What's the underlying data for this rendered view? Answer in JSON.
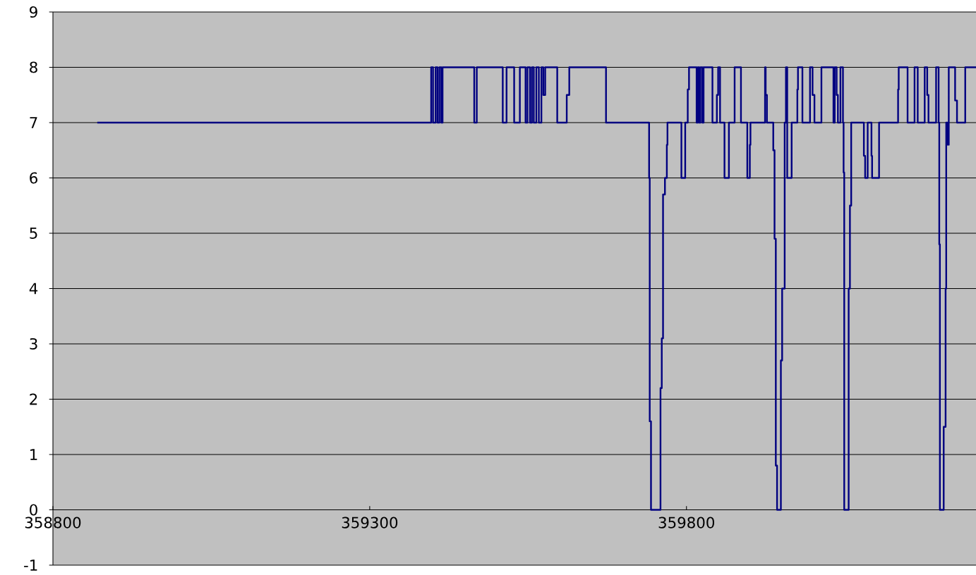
{
  "chart_data": {
    "type": "step",
    "x": [
      358870,
      359397,
      359400,
      359404,
      359407,
      359410,
      359413,
      359415,
      359465,
      359469,
      359510,
      359516,
      359528,
      359537,
      359546,
      359549,
      359553,
      359556,
      359559,
      359563,
      359567,
      359571,
      359574,
      359577,
      359596,
      359611,
      359615,
      359673,
      359741,
      359742,
      359744,
      359759,
      359761,
      359763,
      359766,
      359769,
      359770,
      359792,
      359798,
      359802,
      359804,
      359816,
      359818,
      359820,
      359822,
      359825,
      359827,
      359841,
      359848,
      359850,
      359853,
      359860,
      359867,
      359876,
      359886,
      359896,
      359900,
      359901,
      359924,
      359925,
      359927,
      359937,
      359939,
      359941,
      359943,
      359949,
      359951,
      359955,
      359957,
      359959,
      359966,
      359975,
      359976,
      359983,
      359995,
      359999,
      360002,
      360013,
      360032,
      360034,
      360037,
      360039,
      360043,
      360047,
      360048,
      360049,
      360056,
      360058,
      360060,
      360080,
      360082,
      360086,
      360092,
      360093,
      360104,
      360134,
      360135,
      360149,
      360160,
      360165,
      360176,
      360180,
      360182,
      360194,
      360198,
      360199,
      360200,
      360206,
      360209,
      360210,
      360212,
      360214,
      360224,
      360227,
      360240,
      360257
    ],
    "values": [
      7,
      8,
      7,
      8,
      7,
      8,
      7,
      8,
      7,
      8,
      7,
      8,
      7,
      8,
      7,
      8,
      7,
      8,
      7,
      8,
      7,
      8,
      7.5,
      8,
      7,
      7.5,
      8,
      7,
      6,
      1.6,
      0,
      2.2,
      3.1,
      5.7,
      6,
      6.6,
      7,
      6,
      7,
      7.6,
      8,
      7,
      8,
      7,
      8,
      7,
      8,
      7,
      7.5,
      8,
      7,
      6,
      7,
      8,
      7,
      6,
      6.6,
      7,
      8,
      7.5,
      7,
      6.5,
      4.9,
      0.8,
      0,
      2.7,
      4,
      7,
      8,
      6,
      7,
      7.6,
      8,
      7,
      8,
      7.5,
      7,
      8,
      7,
      8,
      7.5,
      7,
      8,
      7,
      6.1,
      0,
      4,
      5.5,
      7,
      6.4,
      6,
      7,
      6.4,
      6,
      7,
      7.6,
      8,
      7,
      8,
      7,
      8,
      7.5,
      7,
      8,
      7,
      4.8,
      0,
      1.5,
      4,
      7,
      6.6,
      8,
      7.4,
      7,
      8,
      8
    ],
    "color": "#000080",
    "line_style": "solid",
    "xlim": [
      358800,
      360257
    ],
    "ylim": [
      -1,
      9
    ],
    "xticks": [
      358800,
      359300,
      359800
    ],
    "yticks": [
      -1,
      0,
      1,
      2,
      3,
      4,
      5,
      6,
      7,
      8,
      9
    ],
    "grid": "y"
  }
}
